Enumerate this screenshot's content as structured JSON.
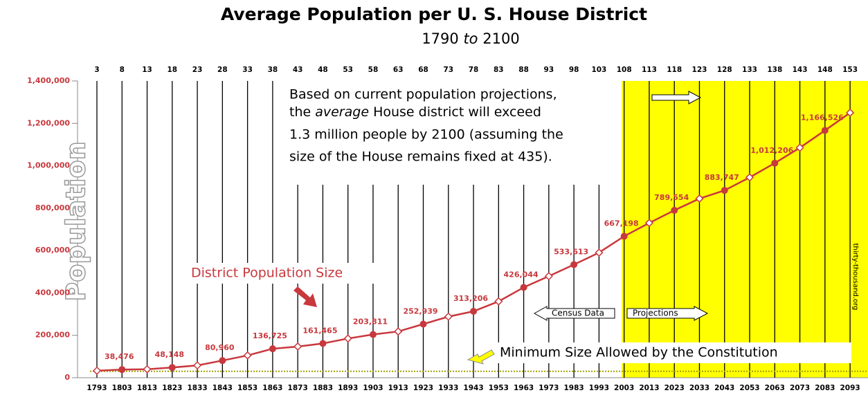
{
  "chart_data": {
    "type": "line",
    "title": "Average Population per U. S. House District",
    "subtitle": [
      "1790",
      "to",
      "2100"
    ],
    "y_label": "Population",
    "categories": [
      "1793",
      "1803",
      "1813",
      "1823",
      "1833",
      "1843",
      "1853",
      "1863",
      "1873",
      "1883",
      "1893",
      "1903",
      "1913",
      "1923",
      "1933",
      "1943",
      "1953",
      "1963",
      "1973",
      "1983",
      "1993",
      "2003",
      "2013",
      "2023",
      "2033",
      "2043",
      "2053",
      "2063",
      "2073",
      "2083",
      "2093"
    ],
    "top_categories": [
      3,
      8,
      13,
      18,
      23,
      28,
      33,
      38,
      43,
      48,
      53,
      58,
      63,
      68,
      73,
      78,
      83,
      88,
      93,
      98,
      103,
      108,
      113,
      118,
      123,
      128,
      133,
      138,
      143,
      148,
      153
    ],
    "series": [
      {
        "name": "District Population Size",
        "color": "#c8383d",
        "values": [
          33000,
          38476,
          40000,
          48148,
          58000,
          80960,
          105000,
          136725,
          147000,
          161465,
          185000,
          203811,
          218000,
          252939,
          288000,
          313206,
          360000,
          426044,
          479000,
          533613,
          590000,
          667198,
          730000,
          789554,
          845000,
          883747,
          945000,
          1012206,
          1085000,
          1166526,
          1250000
        ],
        "value_labels": [
          null,
          "38,476",
          null,
          "48,148",
          null,
          "80,960",
          null,
          "136,725",
          null,
          "161,465",
          null,
          "203,811",
          null,
          "252,939",
          null,
          "313,206",
          null,
          "426,044",
          null,
          "533,613",
          null,
          "667,198",
          null,
          "789,554",
          null,
          "883,747",
          null,
          "1,012,206",
          null,
          "1,166,526",
          null
        ]
      }
    ],
    "ylim": [
      0,
      1400000
    ],
    "yticks": [
      {
        "value": 0,
        "label": "0"
      },
      {
        "value": 200000,
        "label": "200,000"
      },
      {
        "value": 400000,
        "label": "400,000"
      },
      {
        "value": 600000,
        "label": "600,000"
      },
      {
        "value": 800000,
        "label": "800,000"
      },
      {
        "value": 1000000,
        "label": "1,000,000"
      },
      {
        "value": 1200000,
        "label": "1,200,000"
      },
      {
        "value": 1400000,
        "label": "1,400,000"
      }
    ],
    "minimum": {
      "value": 30000,
      "label": "Minimum Size Allowed by the Constitution"
    },
    "note": [
      "Based on current population projections,",
      "the",
      "average",
      "House district will exceed",
      "1.3 million people by 2100 (assuming the",
      "size of the House remains fixed at 435)."
    ],
    "census_label": "Census Data",
    "projection_label": "Projections",
    "source": "thirty-thousand.org"
  }
}
